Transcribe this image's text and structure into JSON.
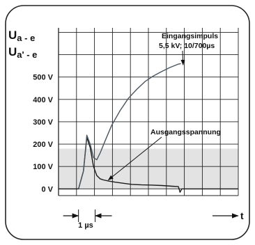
{
  "chart_data": {
    "type": "line",
    "y_axis_label_1": "U",
    "y_axis_label_1_sub": "a - e",
    "y_axis_label_2": "U",
    "y_axis_label_2_sub": "a' - e",
    "x_axis_label": "t",
    "y_tick_labels": [
      "0 V",
      "100 V",
      "200 V",
      "300 V",
      "400 V",
      "500 V"
    ],
    "y_ticks": [
      0,
      100,
      200,
      300,
      400,
      500
    ],
    "ylim": [
      -30,
      720
    ],
    "xlim": [
      -1.2,
      9.6
    ],
    "x_unit": "µs",
    "time_marker_label": "1 µs",
    "time_marker_range": [
      0,
      1
    ],
    "shaded_band": [
      0,
      180
    ],
    "shaded_band_color": "#e3e3e3",
    "grid": true,
    "annotations": [
      {
        "lines": [
          "Eingangsimpuls",
          "5,5 kV; 10/700µs"
        ],
        "points_to": [
          6.2,
          560
        ]
      },
      {
        "lines": [
          "Ausgangsspannung"
        ],
        "points_to": [
          1.7,
          30
        ]
      }
    ],
    "series": [
      {
        "color": "#1a1a1a",
        "x": [
          -1.2,
          0.0,
          0.3,
          0.5,
          0.7,
          0.9,
          1.1,
          1.3,
          1.5,
          1.8,
          2.2,
          2.7,
          3.2,
          3.8,
          4.4,
          5.0,
          5.6,
          6.0,
          6.1,
          6.2,
          9.6
        ],
        "values": [
          0,
          0,
          80,
          230,
          185,
          100,
          60,
          45,
          40,
          35,
          30,
          25,
          20,
          18,
          17,
          15,
          12,
          10,
          -15,
          0,
          0
        ]
      },
      {
        "color": "#4a5560",
        "x": [
          0.0,
          0.3,
          0.5,
          0.7,
          0.9,
          1.1,
          1.3,
          1.6,
          2.0,
          2.5,
          3.0,
          3.5,
          4.0,
          4.5,
          5.0,
          5.5,
          6.0,
          6.15
        ],
        "values": [
          0,
          80,
          240,
          200,
          140,
          130,
          160,
          215,
          285,
          350,
          405,
          445,
          480,
          505,
          525,
          543,
          558,
          560
        ]
      }
    ]
  }
}
